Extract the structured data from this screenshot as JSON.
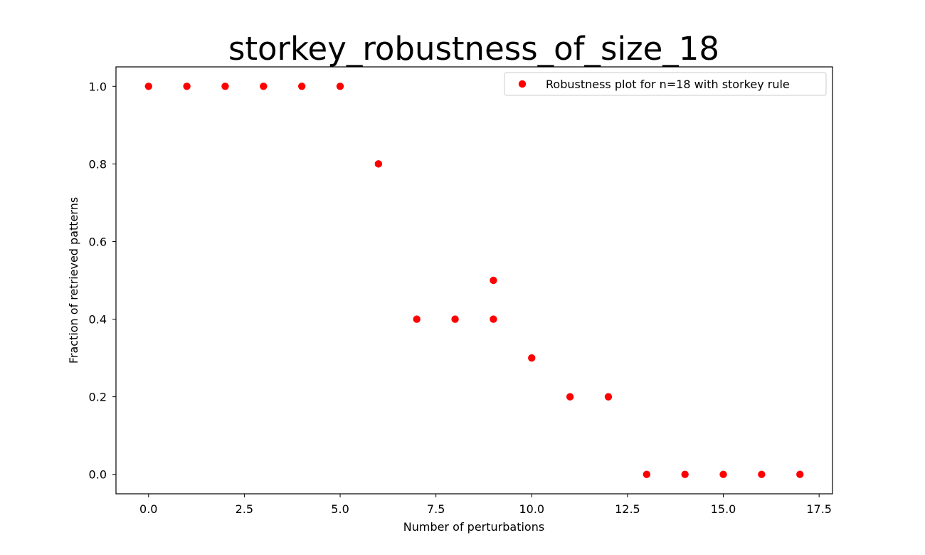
{
  "chart_data": {
    "type": "scatter",
    "title": "storkey_robustness_of_size_18",
    "xlabel": "Number of perturbations",
    "ylabel": "Fraction of retrieved patterns",
    "xlim": [
      -0.85,
      17.85
    ],
    "ylim": [
      -0.05,
      1.05
    ],
    "xticks": [
      0.0,
      2.5,
      5.0,
      7.5,
      10.0,
      12.5,
      15.0,
      17.5
    ],
    "xtick_labels": [
      "0.0",
      "2.5",
      "5.0",
      "7.5",
      "10.0",
      "12.5",
      "15.0",
      "17.5"
    ],
    "yticks": [
      0.0,
      0.2,
      0.4,
      0.6,
      0.8,
      1.0
    ],
    "ytick_labels": [
      "0.0",
      "0.2",
      "0.4",
      "0.6",
      "0.8",
      "1.0"
    ],
    "grid": false,
    "legend_position": "top-right",
    "series": [
      {
        "name": "Robustness plot for n=18 with storkey rule",
        "color": "#ff0000",
        "marker": "circle",
        "x": [
          0,
          1,
          2,
          3,
          4,
          5,
          6,
          7,
          8,
          9,
          9,
          10,
          11,
          12,
          13,
          14,
          15,
          16,
          17
        ],
        "y": [
          1.0,
          1.0,
          1.0,
          1.0,
          1.0,
          1.0,
          0.8,
          0.4,
          0.4,
          0.5,
          0.4,
          0.3,
          0.2,
          0.2,
          0.0,
          0.0,
          0.0,
          0.0,
          0.0
        ]
      }
    ]
  }
}
